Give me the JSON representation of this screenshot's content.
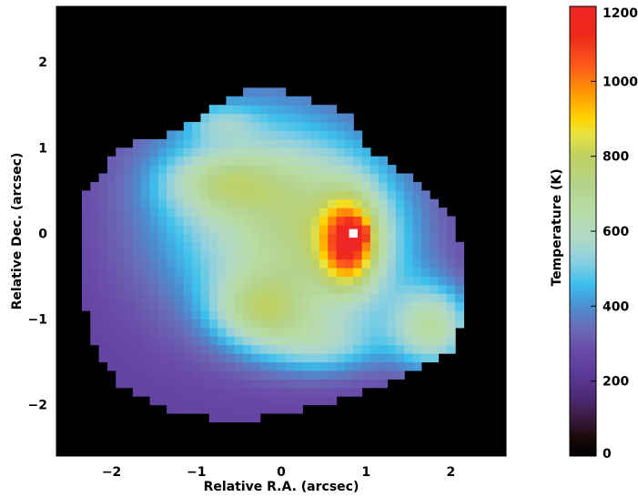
{
  "chart_data": {
    "type": "heatmap",
    "title": "",
    "xlabel": "Relative R.A. (arcsec)",
    "ylabel": "Relative Dec. (arcsec)",
    "xlim": [
      -2.65,
      2.65
    ],
    "ylim": [
      -2.6,
      2.65
    ],
    "x_ticks": [
      -2,
      -1,
      0,
      1,
      2
    ],
    "y_ticks": [
      -2,
      -1,
      0,
      1,
      2
    ],
    "x_tick_labels": [
      "−2",
      "−1",
      "0",
      "1",
      "2"
    ],
    "y_tick_labels": [
      "−2",
      "−1",
      "0",
      "1",
      "2"
    ],
    "background_color": "#000000",
    "pixel_size_arcsec": 0.1,
    "colorbar": {
      "label": "Temperature (K)",
      "range": [
        0,
        1200
      ],
      "ticks": [
        0,
        200,
        400,
        600,
        800,
        1000,
        1200
      ],
      "tick_labels": [
        "0",
        "200",
        "400",
        "600",
        "800",
        "1000",
        "1200"
      ],
      "colormap": [
        [
          0,
          "#000000"
        ],
        [
          50,
          "#1a0a0a"
        ],
        [
          100,
          "#3a1a3e"
        ],
        [
          150,
          "#4a2a6e"
        ],
        [
          220,
          "#5b3a9a"
        ],
        [
          280,
          "#6a4aa8"
        ],
        [
          340,
          "#6a6ab8"
        ],
        [
          400,
          "#4a90d0"
        ],
        [
          460,
          "#3cc0ec"
        ],
        [
          520,
          "#8cd0e0"
        ],
        [
          580,
          "#b0d8c8"
        ],
        [
          650,
          "#b8dca8"
        ],
        [
          720,
          "#b4d48c"
        ],
        [
          800,
          "#c0d060"
        ],
        [
          860,
          "#e8e440"
        ],
        [
          900,
          "#ffd400"
        ],
        [
          960,
          "#ffa000"
        ],
        [
          1040,
          "#ff5a1a"
        ],
        [
          1120,
          "#ee2a1a"
        ],
        [
          1200,
          "#ee2626"
        ]
      ]
    },
    "region": {
      "boundary": [
        [
          -0.4,
          1.7
        ],
        [
          0.05,
          1.65
        ],
        [
          0.5,
          1.5
        ],
        [
          0.85,
          1.4
        ],
        [
          0.95,
          1.0
        ],
        [
          1.3,
          0.8
        ],
        [
          1.65,
          0.6
        ],
        [
          2.0,
          0.2
        ],
        [
          2.15,
          -0.3
        ],
        [
          2.2,
          -0.9
        ],
        [
          2.0,
          -1.4
        ],
        [
          1.6,
          -1.6
        ],
        [
          1.1,
          -1.8
        ],
        [
          0.5,
          -2.0
        ],
        [
          -0.5,
          -2.2
        ],
        [
          -1.2,
          -2.1
        ],
        [
          -1.9,
          -1.8
        ],
        [
          -2.2,
          -1.3
        ],
        [
          -2.4,
          -0.5
        ],
        [
          -2.3,
          0.5
        ],
        [
          -1.9,
          1.0
        ],
        [
          -1.4,
          1.15
        ],
        [
          -0.9,
          1.4
        ]
      ],
      "base_temperature_K": 240,
      "components": [
        {
          "x": -0.3,
          "y": 0.3,
          "sx": 1.0,
          "sy": 1.0,
          "amp": 340
        },
        {
          "x": 0.7,
          "y": -0.1,
          "sx": 0.7,
          "sy": 0.7,
          "amp": 280
        },
        {
          "x": -0.7,
          "y": 0.6,
          "sx": 0.5,
          "sy": 0.25,
          "amp": 200
        },
        {
          "x": -0.25,
          "y": -0.9,
          "sx": 0.4,
          "sy": 0.3,
          "amp": 300
        },
        {
          "x": 1.8,
          "y": -1.1,
          "sx": 0.35,
          "sy": 0.35,
          "amp": 380
        },
        {
          "x": 0.5,
          "y": -1.3,
          "sx": 0.5,
          "sy": 0.25,
          "amp": 200
        },
        {
          "x": 0.8,
          "y": -0.1,
          "sx": 0.22,
          "sy": 0.35,
          "amp": 520
        },
        {
          "x": 0.9,
          "y": 0.0,
          "sx": 0.08,
          "sy": 0.08,
          "amp": 300
        },
        {
          "x": -0.7,
          "y": 1.3,
          "sx": 0.3,
          "sy": 0.15,
          "amp": 120
        }
      ],
      "peak": {
        "x": 0.85,
        "y": 0.0,
        "temperature_K": 1200
      }
    }
  }
}
